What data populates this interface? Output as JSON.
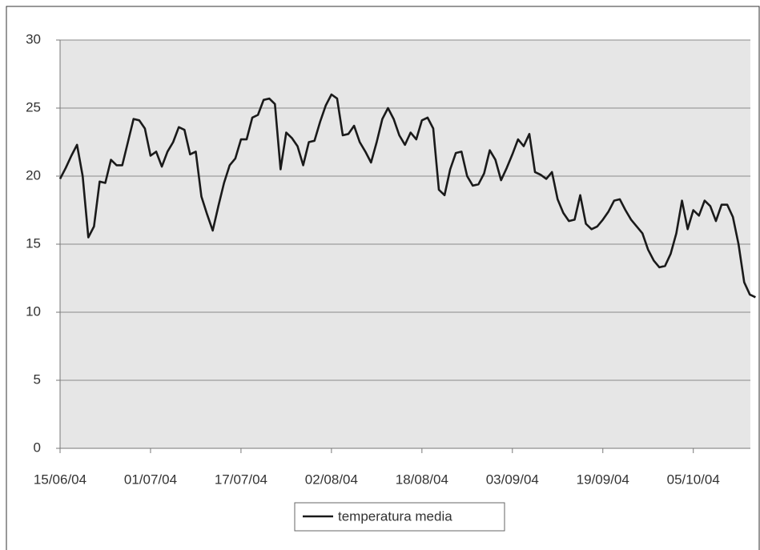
{
  "chart_data": {
    "type": "line",
    "categories": [
      "15/06/04",
      null,
      null,
      null,
      null,
      null,
      null,
      null,
      null,
      null,
      null,
      null,
      null,
      null,
      null,
      null,
      "01/07/04",
      null,
      null,
      null,
      null,
      null,
      null,
      null,
      null,
      null,
      null,
      null,
      null,
      null,
      null,
      null,
      "17/07/04",
      null,
      null,
      null,
      null,
      null,
      null,
      null,
      null,
      null,
      null,
      null,
      null,
      null,
      null,
      null,
      "02/08/04",
      null,
      null,
      null,
      null,
      null,
      null,
      null,
      null,
      null,
      null,
      null,
      null,
      null,
      null,
      null,
      "18/08/04",
      null,
      null,
      null,
      null,
      null,
      null,
      null,
      null,
      null,
      null,
      null,
      null,
      null,
      null,
      null,
      "03/09/04",
      null,
      null,
      null,
      null,
      null,
      null,
      null,
      null,
      null,
      null,
      null,
      null,
      null,
      null,
      null,
      "19/09/04",
      null,
      null,
      null,
      null,
      null,
      null,
      null,
      null,
      null,
      null,
      null,
      null,
      null,
      null,
      null,
      "05/10/04",
      null,
      null,
      null,
      null,
      null,
      null,
      null,
      null,
      null,
      null,
      null
    ],
    "series": [
      {
        "name": "temperatura media",
        "color": "#1a1a1a",
        "values": [
          19.8,
          20.6,
          21.5,
          22.3,
          20.0,
          15.5,
          16.3,
          19.6,
          19.5,
          21.2,
          20.8,
          20.8,
          22.5,
          24.2,
          24.1,
          23.5,
          21.5,
          21.8,
          20.7,
          21.8,
          22.5,
          23.6,
          23.4,
          21.6,
          21.8,
          18.5,
          17.2,
          16.0,
          17.8,
          19.5,
          20.8,
          21.3,
          22.7,
          22.7,
          24.3,
          24.5,
          25.6,
          25.7,
          25.3,
          20.5,
          23.2,
          22.8,
          22.2,
          20.8,
          22.5,
          22.6,
          24,
          25.2,
          26,
          25.7,
          23,
          23.1,
          23.7,
          22.5,
          21.8,
          21,
          22.5,
          24.2,
          25,
          24.2,
          23,
          22.3,
          23.2,
          22.7,
          24.1,
          24.3,
          23.5,
          19,
          18.6,
          20.5,
          21.7,
          21.8,
          20,
          19.3,
          19.4,
          20.2,
          21.9,
          21.2,
          19.7,
          20.6,
          21.6,
          22.7,
          22.2,
          23.1,
          20.3,
          20.1,
          19.8,
          20.3,
          18.3,
          17.3,
          16.7,
          16.8,
          18.6,
          16.5,
          16.1,
          16.3,
          16.8,
          17.4,
          18.2,
          18.3,
          17.5,
          16.8,
          16.3,
          15.8,
          14.6,
          13.8,
          13.3,
          13.4,
          14.3,
          15.8,
          18.2,
          16.1,
          17.5,
          17.1,
          18.2,
          17.8,
          16.7,
          17.9,
          17.9,
          17,
          15,
          12.2,
          11.3,
          11.1
        ]
      }
    ],
    "ylim": [
      0,
      30
    ],
    "yticks": [
      0,
      5,
      10,
      15,
      20,
      25,
      30
    ],
    "grid": true,
    "legend": "bottom"
  }
}
